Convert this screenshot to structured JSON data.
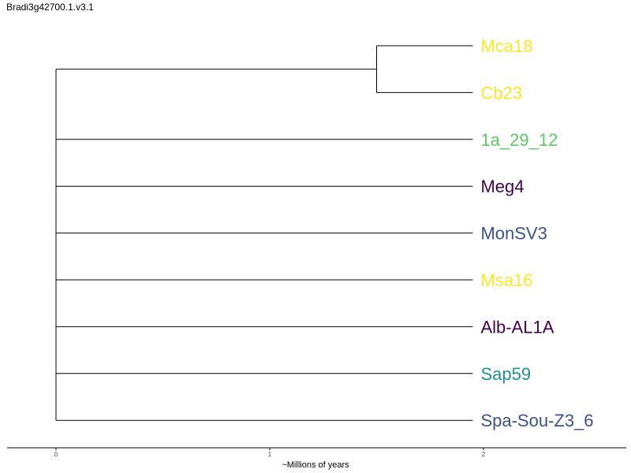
{
  "title": "Bradi3g42700.1.v3.1",
  "chart_data": {
    "type": "dendrogram",
    "xlabel": "~Millions of years",
    "x_ticks": [
      0,
      1,
      2
    ],
    "xlim": [
      -0.23,
      2.67
    ],
    "leaves": [
      {
        "label": "Mca18",
        "color": "#fde725"
      },
      {
        "label": "Cb23",
        "color": "#fde725"
      },
      {
        "label": "1a_29_12",
        "color": "#5ec962"
      },
      {
        "label": "Meg4",
        "color": "#440154"
      },
      {
        "label": "MonSV3",
        "color": "#3b528b"
      },
      {
        "label": "Msa16",
        "color": "#fde725"
      },
      {
        "label": "Alb-AL1A",
        "color": "#440154"
      },
      {
        "label": "Sap59",
        "color": "#21918c"
      },
      {
        "label": "Spa-Sou-Z3_6",
        "color": "#3b528b"
      }
    ],
    "tip_x": 1.95,
    "clades": [
      {
        "members": [
          "Mca18",
          "Cb23"
        ],
        "node_x": 1.5
      }
    ],
    "root_x": 0
  }
}
